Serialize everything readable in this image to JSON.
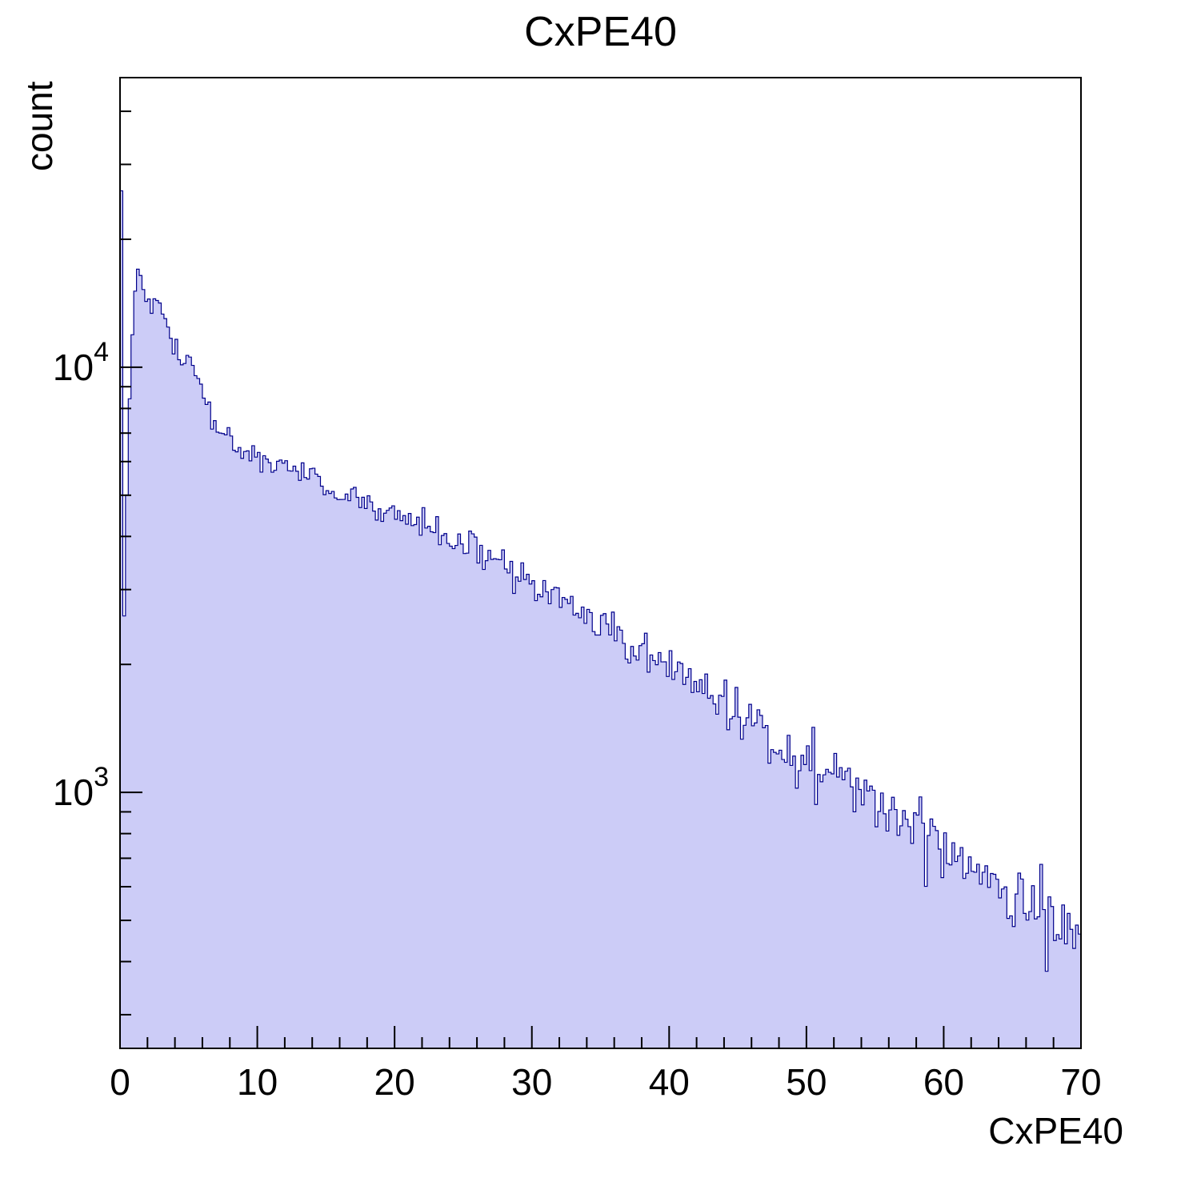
{
  "chart_data": {
    "type": "bar",
    "subtype": "histogram-step-filled",
    "title": "CxPE40",
    "xlabel": "CxPE40",
    "ylabel": "count",
    "x_range": [
      0,
      70
    ],
    "bin_width": 0.2,
    "y_scale": "log",
    "y_range": [
      250,
      48000
    ],
    "x_major_ticks": [
      0,
      10,
      20,
      30,
      40,
      50,
      60,
      70
    ],
    "x_minor_step": 2,
    "y_major_tick_exponents": [
      3,
      4
    ],
    "grid": false,
    "legend": "none",
    "fill_color": "#ccccf7",
    "line_color": "#00008b",
    "frame_color": "#000000",
    "text_color": "#000000",
    "noise_coeff": 2.8,
    "seed": 42,
    "envelope_points": [
      [
        0.1,
        26000
      ],
      [
        0.3,
        2600
      ],
      [
        0.5,
        5200
      ],
      [
        0.7,
        8500
      ],
      [
        0.9,
        12500
      ],
      [
        1.1,
        15500
      ],
      [
        1.3,
        17200
      ],
      [
        1.5,
        16000
      ],
      [
        1.8,
        15000
      ],
      [
        2.2,
        14600
      ],
      [
        2.6,
        14200
      ],
      [
        3.0,
        13500
      ],
      [
        3.4,
        12400
      ],
      [
        3.8,
        11300
      ],
      [
        4.2,
        10800
      ],
      [
        4.6,
        10300
      ],
      [
        5.0,
        10600
      ],
      [
        5.4,
        10100
      ],
      [
        5.8,
        9300
      ],
      [
        6.2,
        8300
      ],
      [
        6.6,
        7600
      ],
      [
        7.0,
        7200
      ],
      [
        7.5,
        6900
      ],
      [
        8.0,
        6700
      ],
      [
        8.5,
        6600
      ],
      [
        9.0,
        6400
      ],
      [
        10.0,
        6200
      ],
      [
        11.0,
        6000
      ],
      [
        12.0,
        5850
      ],
      [
        13.0,
        5650
      ],
      [
        14.0,
        5450
      ],
      [
        15.0,
        5250
      ],
      [
        16.0,
        5050
      ],
      [
        17.0,
        4950
      ],
      [
        18.0,
        4750
      ],
      [
        19.0,
        4600
      ],
      [
        20.0,
        4500
      ],
      [
        22.0,
        4250
      ],
      [
        24.0,
        4000
      ],
      [
        26.0,
        3700
      ],
      [
        28.0,
        3400
      ],
      [
        30.0,
        3100
      ],
      [
        32.0,
        2850
      ],
      [
        33.0,
        2650
      ],
      [
        34.0,
        2550
      ],
      [
        36.0,
        2350
      ],
      [
        38.0,
        2150
      ],
      [
        40.0,
        1950
      ],
      [
        42.0,
        1780
      ],
      [
        44.0,
        1620
      ],
      [
        46.0,
        1480
      ],
      [
        48.0,
        1340
      ],
      [
        50.0,
        1200
      ],
      [
        52.0,
        1090
      ],
      [
        54.0,
        1000
      ],
      [
        56.0,
        910
      ],
      [
        58.0,
        830
      ],
      [
        60.0,
        760
      ],
      [
        62.0,
        690
      ],
      [
        64.0,
        630
      ],
      [
        66.0,
        575
      ],
      [
        68.0,
        525
      ],
      [
        70.0,
        480
      ]
    ]
  }
}
